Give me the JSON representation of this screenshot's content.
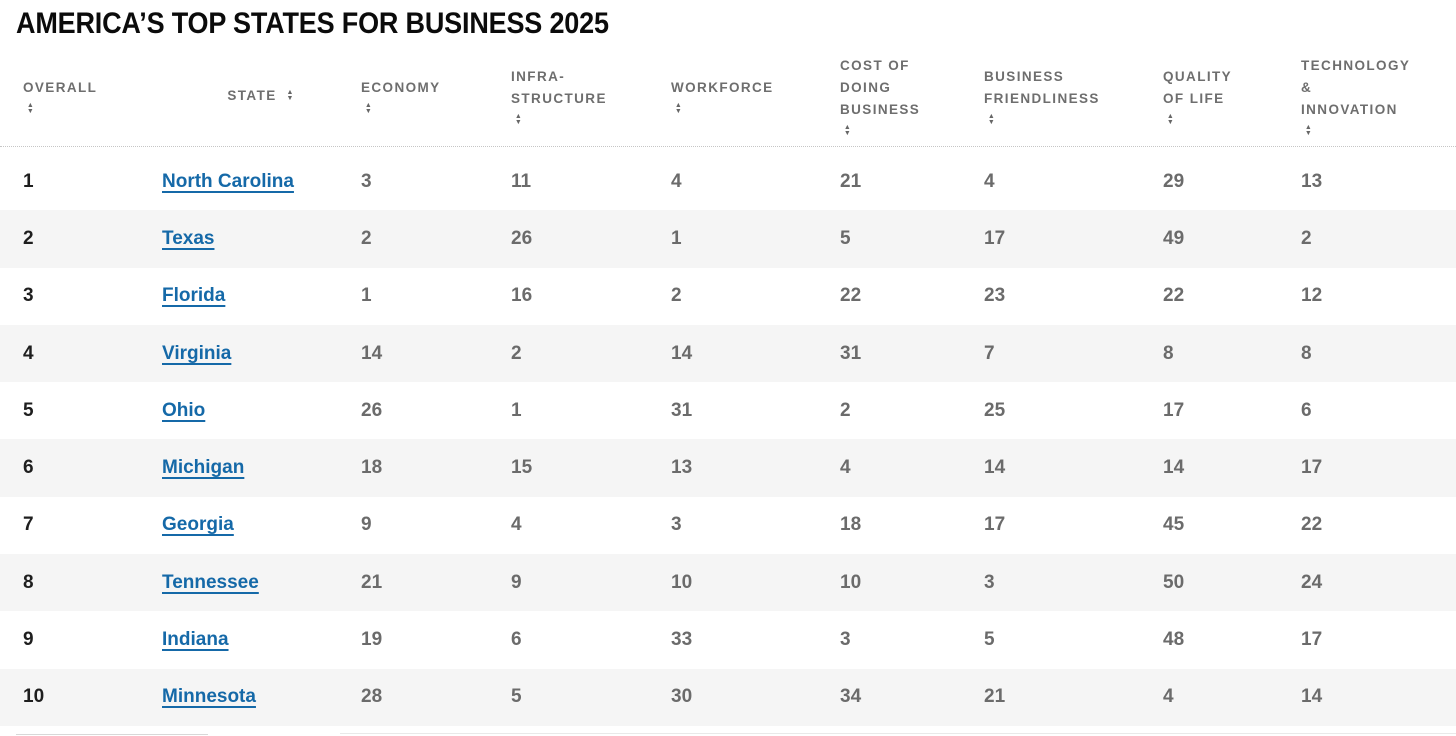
{
  "page": {
    "title": "AMERICA’S TOP STATES FOR BUSINESS 2025"
  },
  "icons": {
    "sort_asc": "▲",
    "sort_desc": "▼"
  },
  "colors": {
    "link_blue": "#1569a8",
    "rank_text": "#1e1e1e",
    "cell_text": "#6b6b6b",
    "header_text": "#6e6e6e",
    "row_stripe": "#f5f5f5",
    "header_divider": "#c6c6c6",
    "title_text": "#0b0b0b"
  },
  "table": {
    "columns": [
      {
        "id": "overall",
        "label": "OVERALL",
        "label_lines": [
          "OVERALL"
        ],
        "sortable": true,
        "arrow_inline": false
      },
      {
        "id": "state",
        "label": "STATE",
        "label_lines": [
          "STATE"
        ],
        "sortable": true,
        "arrow_inline": true
      },
      {
        "id": "economy",
        "label": "ECONOMY",
        "label_lines": [
          "ECONOMY"
        ],
        "sortable": true,
        "arrow_inline": false
      },
      {
        "id": "infrastructure",
        "label": "INFRA-STRUCTURE",
        "label_lines": [
          "INFRA-",
          "STRUCTURE"
        ],
        "sortable": true,
        "arrow_inline": false
      },
      {
        "id": "workforce",
        "label": "WORKFORCE",
        "label_lines": [
          "WORKFORCE"
        ],
        "sortable": true,
        "arrow_inline": false
      },
      {
        "id": "cost_of_doing_business",
        "label": "COST OF DOING BUSINESS",
        "label_lines": [
          "COST OF",
          "DOING",
          "BUSINESS"
        ],
        "sortable": true,
        "arrow_inline": false
      },
      {
        "id": "business_friendliness",
        "label": "BUSINESS FRIENDLINESS",
        "label_lines": [
          "BUSINESS",
          "FRIENDLINESS"
        ],
        "sortable": true,
        "arrow_inline": false
      },
      {
        "id": "quality_of_life",
        "label": "QUALITY OF LIFE",
        "label_lines": [
          "QUALITY",
          "OF LIFE"
        ],
        "sortable": true,
        "arrow_inline": false
      },
      {
        "id": "technology_innovation",
        "label": "TECHNOLOGY & INNOVATION",
        "label_lines": [
          "TECHNOLOGY",
          "&",
          "INNOVATION"
        ],
        "sortable": true,
        "arrow_inline": false
      }
    ],
    "rows": [
      {
        "overall": "1",
        "state": "North Carolina",
        "economy": "3",
        "infrastructure": "11",
        "workforce": "4",
        "cost_of_doing_business": "21",
        "business_friendliness": "4",
        "quality_of_life": "29",
        "technology_innovation": "13"
      },
      {
        "overall": "2",
        "state": "Texas",
        "economy": "2",
        "infrastructure": "26",
        "workforce": "1",
        "cost_of_doing_business": "5",
        "business_friendliness": "17",
        "quality_of_life": "49",
        "technology_innovation": "2"
      },
      {
        "overall": "3",
        "state": "Florida",
        "economy": "1",
        "infrastructure": "16",
        "workforce": "2",
        "cost_of_doing_business": "22",
        "business_friendliness": "23",
        "quality_of_life": "22",
        "technology_innovation": "12"
      },
      {
        "overall": "4",
        "state": "Virginia",
        "economy": "14",
        "infrastructure": "2",
        "workforce": "14",
        "cost_of_doing_business": "31",
        "business_friendliness": "7",
        "quality_of_life": "8",
        "technology_innovation": "8"
      },
      {
        "overall": "5",
        "state": "Ohio",
        "economy": "26",
        "infrastructure": "1",
        "workforce": "31",
        "cost_of_doing_business": "2",
        "business_friendliness": "25",
        "quality_of_life": "17",
        "technology_innovation": "6"
      },
      {
        "overall": "6",
        "state": "Michigan",
        "economy": "18",
        "infrastructure": "15",
        "workforce": "13",
        "cost_of_doing_business": "4",
        "business_friendliness": "14",
        "quality_of_life": "14",
        "technology_innovation": "17"
      },
      {
        "overall": "7",
        "state": "Georgia",
        "economy": "9",
        "infrastructure": "4",
        "workforce": "3",
        "cost_of_doing_business": "18",
        "business_friendliness": "17",
        "quality_of_life": "45",
        "technology_innovation": "22"
      },
      {
        "overall": "8",
        "state": "Tennessee",
        "economy": "21",
        "infrastructure": "9",
        "workforce": "10",
        "cost_of_doing_business": "10",
        "business_friendliness": "3",
        "quality_of_life": "50",
        "technology_innovation": "24"
      },
      {
        "overall": "9",
        "state": "Indiana",
        "economy": "19",
        "infrastructure": "6",
        "workforce": "33",
        "cost_of_doing_business": "3",
        "business_friendliness": "5",
        "quality_of_life": "48",
        "technology_innovation": "17"
      },
      {
        "overall": "10",
        "state": "Minnesota",
        "economy": "28",
        "infrastructure": "5",
        "workforce": "30",
        "cost_of_doing_business": "34",
        "business_friendliness": "21",
        "quality_of_life": "4",
        "technology_innovation": "14"
      }
    ]
  }
}
